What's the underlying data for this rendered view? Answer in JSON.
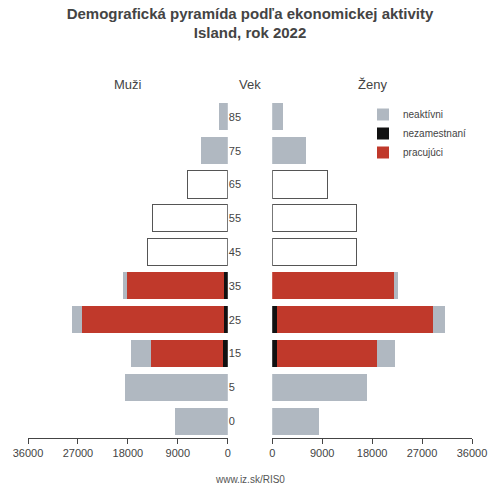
{
  "chart_data": [
    {
      "type": "bar",
      "title": "Demografická pyramída podľa ekonomickej aktivity\nIsland, rok 2022",
      "xlabel": "Muži",
      "ylabel": "Vek",
      "orientation": "horizontal",
      "stacked": true,
      "grid": false,
      "categories": [
        "0",
        "5",
        "15",
        "25",
        "35",
        "45",
        "55",
        "65",
        "75",
        "85"
      ],
      "series": [
        {
          "name": "neaktívni",
          "color": "#b0b8c1",
          "values": [
            9500,
            18500,
            3500,
            1800,
            700,
            null,
            null,
            null,
            4800,
            1500
          ]
        },
        {
          "name": "nezamestnaní",
          "color": "#111111",
          "values": [
            0,
            0,
            900,
            700,
            600,
            null,
            null,
            null,
            0,
            0
          ]
        },
        {
          "name": "pracujúci",
          "color": "#c0392b",
          "values": [
            0,
            0,
            13000,
            25500,
            17500,
            null,
            null,
            null,
            0,
            0
          ]
        },
        {
          "color": "#555555",
          "marker": "outline",
          "values": [
            null,
            null,
            null,
            null,
            null,
            14500,
            13500,
            7200,
            null,
            null
          ]
        }
      ],
      "xlim": [
        0,
        36000
      ],
      "xticks": [
        0,
        9000,
        18000,
        27000,
        36000
      ],
      "annotations": [
        {
          "text": "www.iz.sk/RIS0"
        }
      ]
    },
    {
      "type": "bar",
      "xlabel": "Ženy",
      "orientation": "horizontal",
      "stacked": true,
      "grid": false,
      "legend": "upper right",
      "categories": [
        "0",
        "5",
        "15",
        "25",
        "35",
        "45",
        "55",
        "65",
        "75",
        "85"
      ],
      "series": [
        {
          "name": "neaktívni",
          "color": "#b0b8c1",
          "values": [
            8500,
            17000,
            3200,
            2200,
            700,
            null,
            null,
            null,
            6000,
            2000
          ]
        },
        {
          "name": "nezamestnaní",
          "color": "#111111",
          "values": [
            0,
            0,
            900,
            900,
            0,
            null,
            null,
            null,
            0,
            0
          ]
        },
        {
          "name": "pracujúci",
          "color": "#c0392b",
          "values": [
            0,
            0,
            18000,
            28000,
            22000,
            null,
            null,
            null,
            0,
            0
          ]
        },
        {
          "color": "#555555",
          "marker": "outline",
          "values": [
            null,
            null,
            null,
            null,
            null,
            15200,
            15200,
            10000,
            null,
            null
          ]
        }
      ],
      "xlim": [
        0,
        36000
      ],
      "xticks": [
        0,
        9000,
        18000,
        27000,
        36000
      ]
    }
  ]
}
